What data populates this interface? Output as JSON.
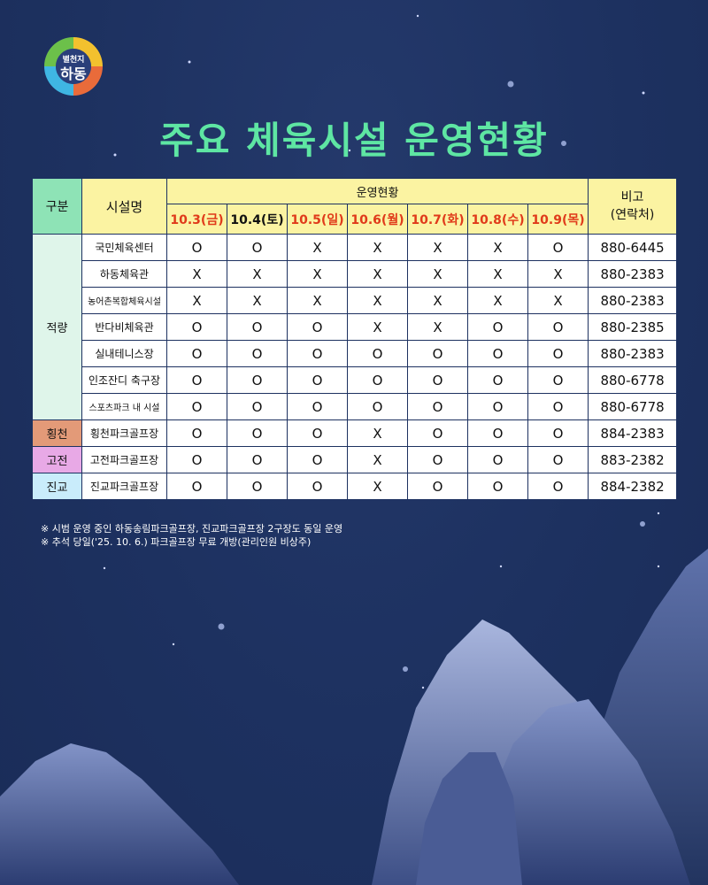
{
  "logo": {
    "small_text": "별천지",
    "big_text": "하동"
  },
  "title": "주요 체육시설 운영현황",
  "table": {
    "header": {
      "category": "구분",
      "facility": "시설명",
      "ops": "운영현황",
      "note": "비고",
      "note_sub": "(연락처)",
      "dates": [
        "10.3(금)",
        "10.4(토)",
        "10.5(일)",
        "10.6(월)",
        "10.7(화)",
        "10.8(수)",
        "10.9(목)"
      ],
      "date_colors": [
        "#e03a1a",
        "#111111",
        "#e03a1a",
        "#e03a1a",
        "#e03a1a",
        "#e03a1a",
        "#e03a1a"
      ]
    },
    "groups": [
      {
        "name": "적량",
        "color": "#dff5ea",
        "rows": [
          {
            "facility": "국민체육센터",
            "marks": [
              "O",
              "O",
              "X",
              "X",
              "X",
              "X",
              "O"
            ],
            "phone": "880-6445"
          },
          {
            "facility": "하동체육관",
            "marks": [
              "X",
              "X",
              "X",
              "X",
              "X",
              "X",
              "X"
            ],
            "phone": "880-2383"
          },
          {
            "facility": "농어촌복합체육시설",
            "marks": [
              "X",
              "X",
              "X",
              "X",
              "X",
              "X",
              "X"
            ],
            "phone": "880-2383"
          },
          {
            "facility": "반다비체육관",
            "marks": [
              "O",
              "O",
              "O",
              "X",
              "X",
              "O",
              "O"
            ],
            "phone": "880-2385"
          },
          {
            "facility": "실내테니스장",
            "marks": [
              "O",
              "O",
              "O",
              "O",
              "O",
              "O",
              "O"
            ],
            "phone": "880-2383"
          },
          {
            "facility": "인조잔디 축구장",
            "marks": [
              "O",
              "O",
              "O",
              "O",
              "O",
              "O",
              "O"
            ],
            "phone": "880-6778"
          },
          {
            "facility": "스포츠파크 내 시설",
            "marks": [
              "O",
              "O",
              "O",
              "O",
              "O",
              "O",
              "O"
            ],
            "phone": "880-6778"
          }
        ]
      },
      {
        "name": "횡천",
        "color": "#e39a78",
        "rows": [
          {
            "facility": "횡천파크골프장",
            "marks": [
              "O",
              "O",
              "O",
              "X",
              "O",
              "O",
              "O"
            ],
            "phone": "884-2383"
          }
        ]
      },
      {
        "name": "고전",
        "color": "#e8a9e6",
        "rows": [
          {
            "facility": "고전파크골프장",
            "marks": [
              "O",
              "O",
              "O",
              "X",
              "O",
              "O",
              "O"
            ],
            "phone": "883-2382"
          }
        ]
      },
      {
        "name": "진교",
        "color": "#c9ecfb",
        "rows": [
          {
            "facility": "진교파크골프장",
            "marks": [
              "O",
              "O",
              "O",
              "X",
              "O",
              "O",
              "O"
            ],
            "phone": "884-2382"
          }
        ]
      }
    ]
  },
  "notes": [
    "※ 시범 운영 중인 하동송림파크골프장, 진교파크골프장 2구장도 동일 운영",
    "※ 추석 당일('25. 10. 6.) 파크골프장 무료 개방(관리인원 비상주)"
  ],
  "colors": {
    "background": "#1d3160",
    "title": "#5ee6a3",
    "header_yellow": "#fbf3a2",
    "header_green": "#8ee3b6"
  }
}
